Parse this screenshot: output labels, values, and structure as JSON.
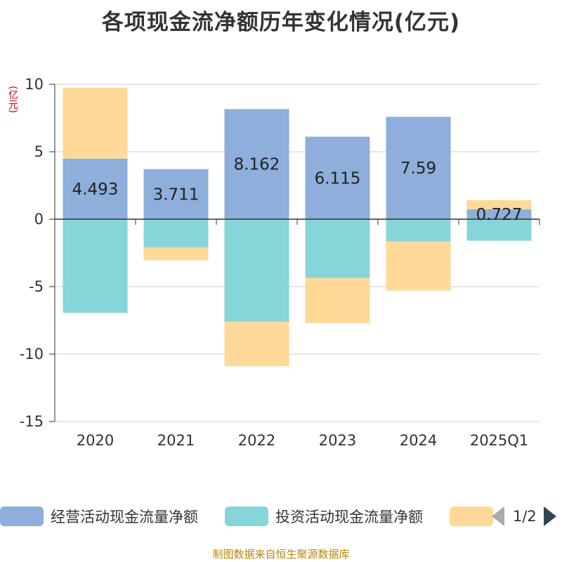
{
  "title": "各项现金流净额历年变化情况(亿元)",
  "unit_label": "(亿元)",
  "source": "制图数据来自恒生聚源数据库",
  "legend": {
    "page_text": "1/2"
  },
  "colors": {
    "operating": "#8eaedb",
    "investing": "#86d5d8",
    "financing": "#fed998"
  },
  "chart_data": {
    "type": "bar",
    "stacked": true,
    "categories": [
      "2020",
      "2021",
      "2022",
      "2023",
      "2024",
      "2025Q1"
    ],
    "series": [
      {
        "name": "经营活动现金流量净额",
        "values": [
          4.493,
          3.711,
          8.162,
          6.115,
          7.59,
          0.727
        ],
        "show_labels": true
      },
      {
        "name": "投资活动现金流量净额",
        "values": [
          -6.95,
          -2.1,
          -7.6,
          -4.35,
          -1.65,
          -1.6
        ],
        "show_labels": false
      },
      {
        "name": "",
        "values": [
          5.25,
          -0.95,
          -3.3,
          -3.35,
          -3.65,
          0.68
        ],
        "show_labels": false
      }
    ],
    "ylim": [
      -15,
      10
    ],
    "yticks": [
      10,
      5,
      0,
      -5,
      -10,
      -15
    ],
    "grid": true,
    "legend_position": "bottom"
  }
}
